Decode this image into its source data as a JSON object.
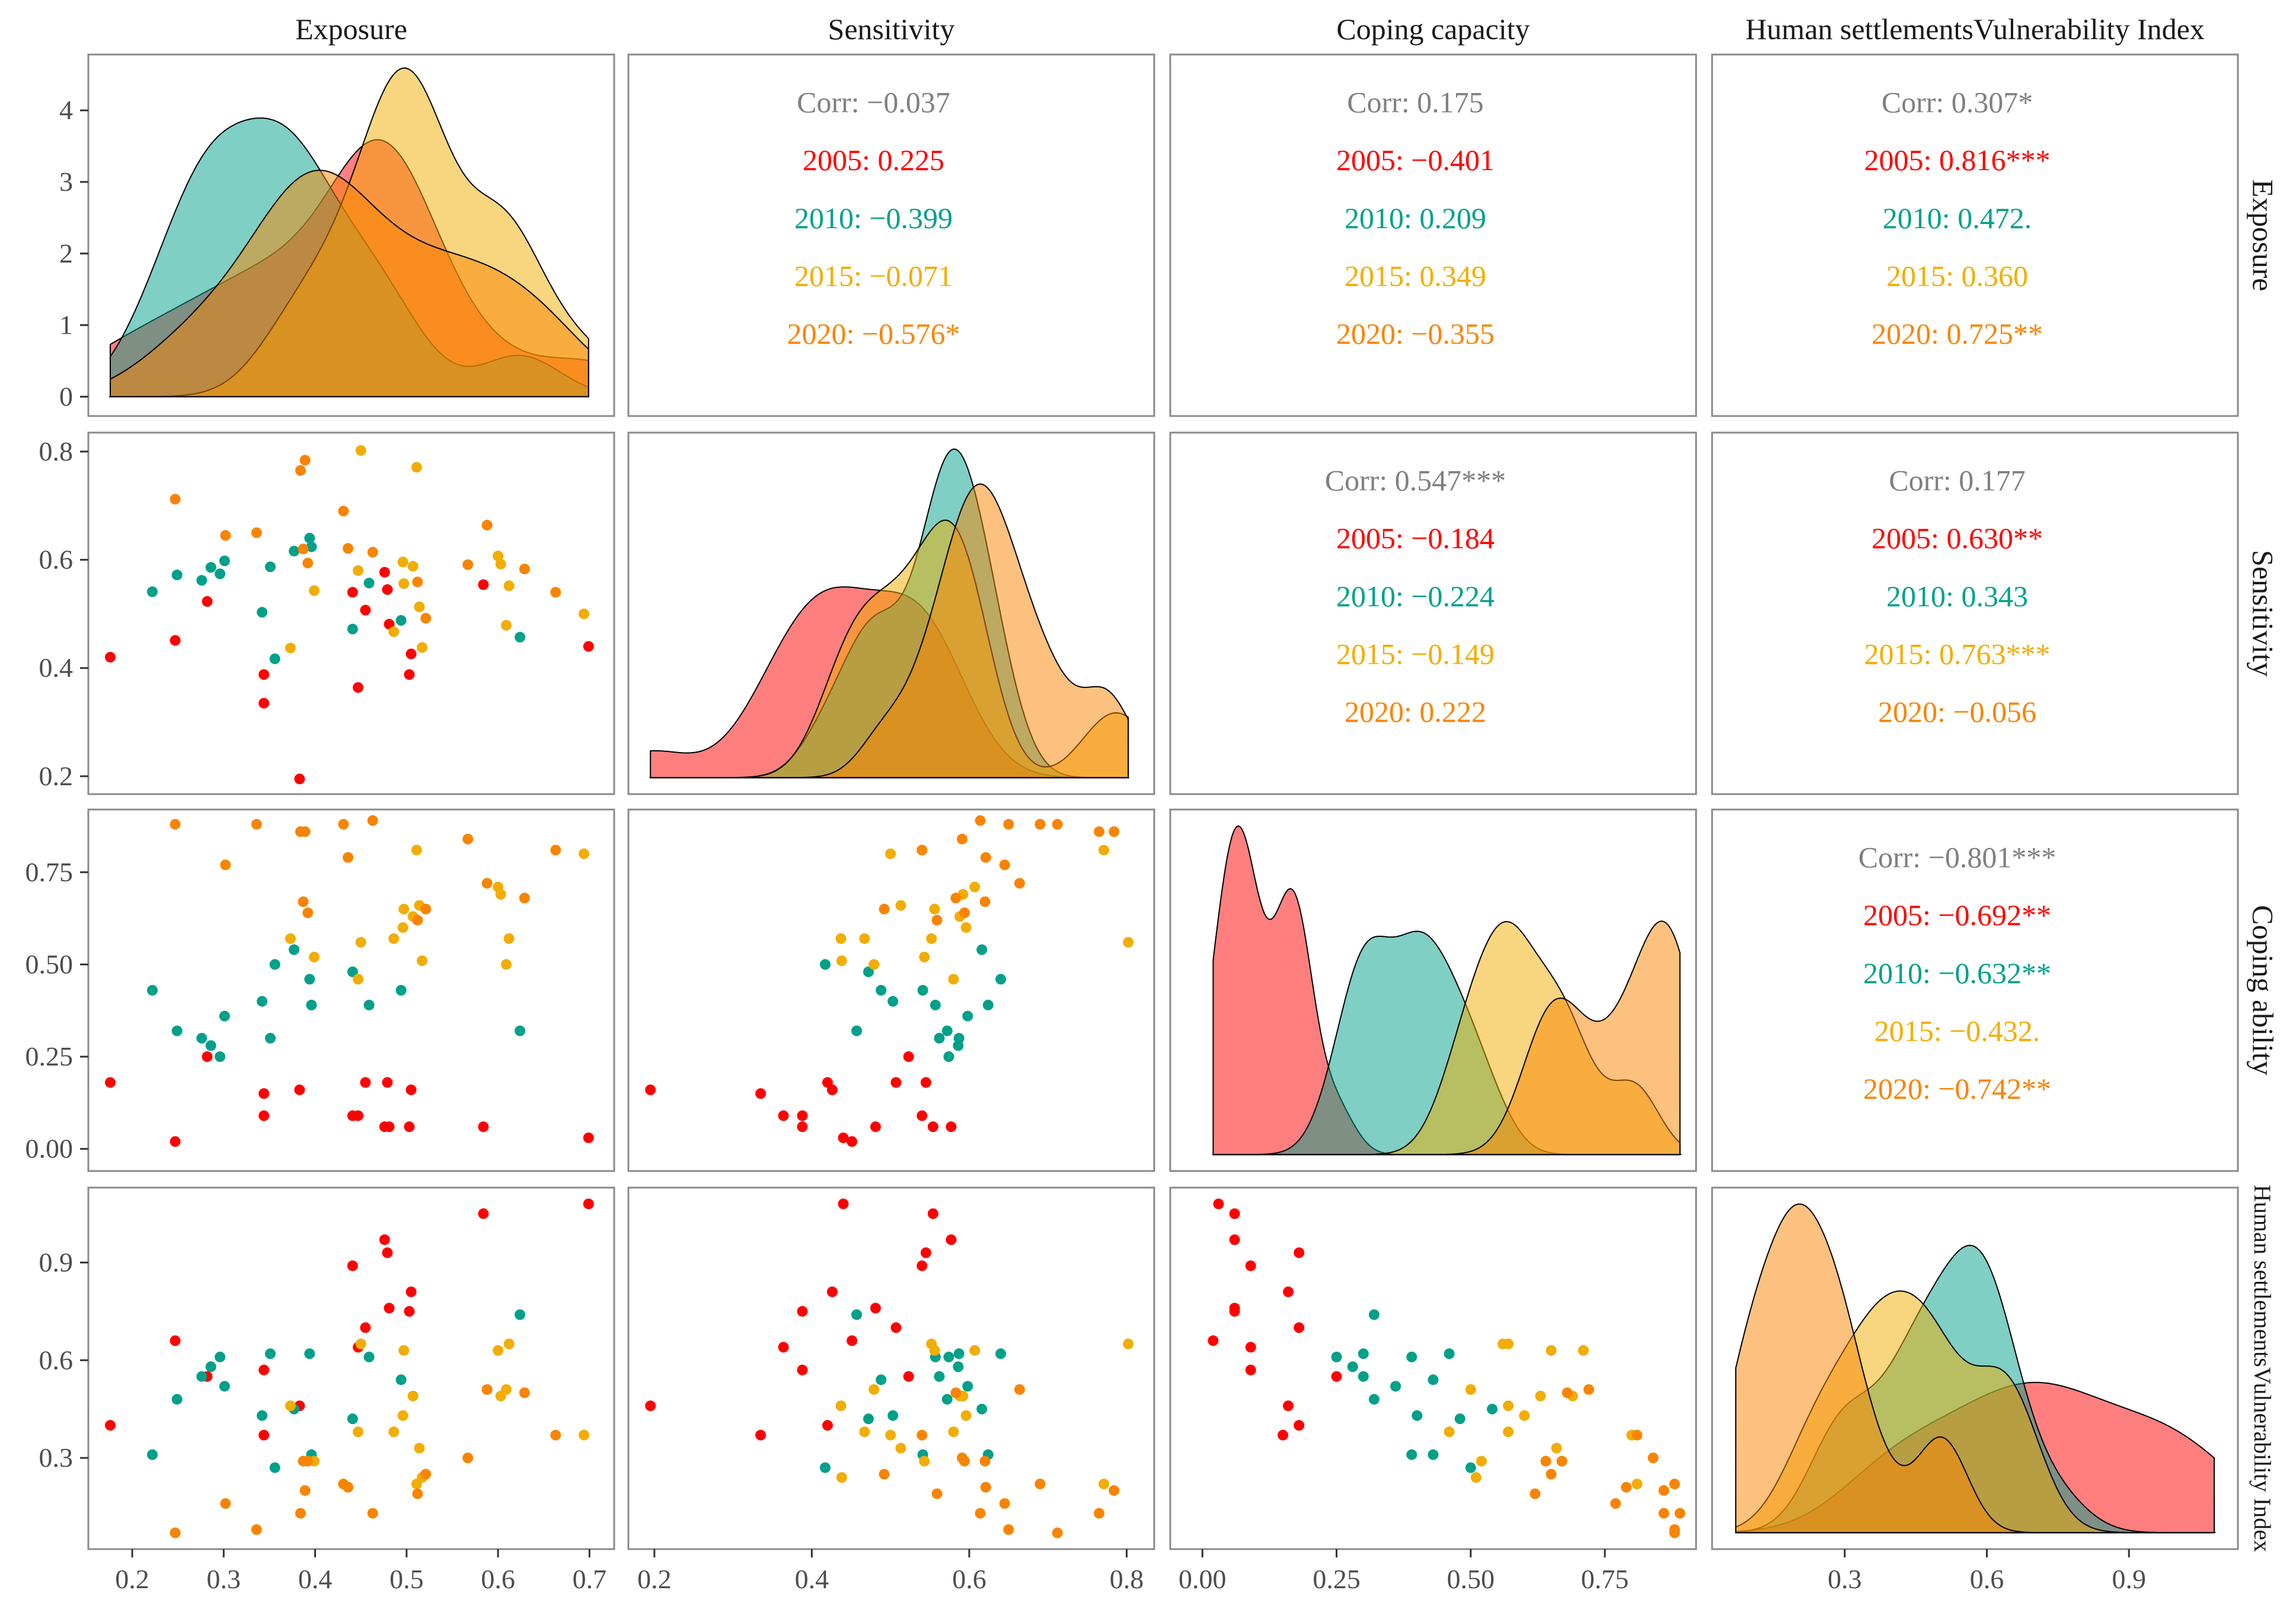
{
  "chart_data": {
    "type": "scatter-matrix",
    "title": "",
    "groups": [
      {
        "name": "2005",
        "color": "#FF0000"
      },
      {
        "name": "2010",
        "color": "#00A08A"
      },
      {
        "name": "2015",
        "color": "#F2AD00"
      },
      {
        "name": "2020",
        "color": "#F98400"
      }
    ],
    "variables": [
      {
        "key": "E",
        "column_label": "Exposure",
        "row_label": "Exposure",
        "range": [
          0.152,
          0.727
        ],
        "ticks": [
          0.2,
          0.3,
          0.4,
          0.5,
          0.6,
          0.7
        ],
        "tick_labels": [
          "0.2",
          "0.3",
          "0.4",
          "0.5",
          "0.6",
          "0.7"
        ]
      },
      {
        "key": "S",
        "column_label": "Sensitivity",
        "row_label": "Sensitivity",
        "range": [
          0.167,
          0.835
        ],
        "ticks": [
          0.2,
          0.4,
          0.6,
          0.8
        ],
        "tick_labels": [
          "0.2",
          "0.4",
          "0.6",
          "0.8"
        ]
      },
      {
        "key": "C",
        "column_label": "Coping capacity",
        "row_label": "Coping ability",
        "range": [
          -0.06,
          0.92
        ],
        "ticks": [
          0,
          0.25,
          0.5,
          0.75
        ],
        "tick_labels": [
          "0.00",
          "0.25",
          "0.50",
          "0.75"
        ]
      },
      {
        "key": "H",
        "column_label": "Human settlementsVulnerability Index",
        "row_label": "Human settlementsVulnerability Index",
        "range": [
          0.02,
          1.13
        ],
        "ticks": [
          0.3,
          0.6,
          0.9
        ],
        "tick_labels": [
          "0.3",
          "0.6",
          "0.9"
        ]
      }
    ],
    "density_axis": {
      "range": [
        -0.27,
        4.78
      ],
      "ticks": [
        0,
        1,
        2,
        3,
        4
      ],
      "tick_labels": [
        "0",
        "1",
        "2",
        "3",
        "4"
      ]
    },
    "observations": {
      "2005": {
        "E": [
          0.176,
          0.247,
          0.282,
          0.344,
          0.344,
          0.383,
          0.441,
          0.455,
          0.447,
          0.476,
          0.479,
          0.481,
          0.505,
          0.503,
          0.584,
          0.699
        ],
        "S": [
          0.42,
          0.451,
          0.523,
          0.388,
          0.335,
          0.195,
          0.54,
          0.507,
          0.364,
          0.577,
          0.545,
          0.481,
          0.426,
          0.388,
          0.554,
          0.44
        ],
        "C": [
          0.18,
          0.02,
          0.25,
          0.09,
          0.15,
          0.16,
          0.09,
          0.18,
          0.09,
          0.06,
          0.18,
          0.06,
          0.16,
          0.06,
          0.06,
          0.03
        ],
        "H": [
          0.4,
          0.66,
          0.55,
          0.57,
          0.37,
          0.46,
          0.89,
          0.7,
          0.64,
          0.97,
          0.93,
          0.76,
          0.81,
          0.75,
          1.05,
          1.08
        ]
      },
      "2010": {
        "E": [
          0.222,
          0.249,
          0.276,
          0.286,
          0.296,
          0.301,
          0.342,
          0.351,
          0.356,
          0.377,
          0.394,
          0.396,
          0.441,
          0.459,
          0.494,
          0.624
        ],
        "S": [
          0.541,
          0.572,
          0.562,
          0.586,
          0.574,
          0.598,
          0.503,
          0.587,
          0.417,
          0.616,
          0.64,
          0.624,
          0.472,
          0.557,
          0.488,
          0.457
        ],
        "C": [
          0.43,
          0.32,
          0.3,
          0.28,
          0.25,
          0.36,
          0.4,
          0.3,
          0.5,
          0.54,
          0.46,
          0.39,
          0.48,
          0.39,
          0.43,
          0.32
        ],
        "H": [
          0.31,
          0.48,
          0.55,
          0.58,
          0.61,
          0.52,
          0.43,
          0.62,
          0.27,
          0.45,
          0.62,
          0.31,
          0.42,
          0.61,
          0.54,
          0.74
        ]
      },
      "2015": {
        "E": [
          0.373,
          0.399,
          0.45,
          0.447,
          0.511,
          0.496,
          0.507,
          0.497,
          0.514,
          0.486,
          0.517,
          0.6,
          0.603,
          0.612,
          0.609,
          0.694
        ],
        "S": [
          0.437,
          0.543,
          0.802,
          0.58,
          0.771,
          0.596,
          0.588,
          0.556,
          0.513,
          0.467,
          0.438,
          0.607,
          0.592,
          0.552,
          0.479,
          0.5
        ],
        "C": [
          0.57,
          0.52,
          0.56,
          0.46,
          0.81,
          0.6,
          0.63,
          0.65,
          0.66,
          0.57,
          0.51,
          0.71,
          0.69,
          0.57,
          0.5,
          0.8
        ],
        "H": [
          0.46,
          0.29,
          0.65,
          0.38,
          0.22,
          0.43,
          0.49,
          0.63,
          0.33,
          0.38,
          0.24,
          0.63,
          0.49,
          0.65,
          0.51,
          0.37
        ]
      },
      "2020": {
        "E": [
          0.247,
          0.302,
          0.336,
          0.384,
          0.389,
          0.387,
          0.392,
          0.431,
          0.436,
          0.463,
          0.512,
          0.521,
          0.567,
          0.588,
          0.629,
          0.663
        ],
        "S": [
          0.712,
          0.645,
          0.65,
          0.765,
          0.784,
          0.62,
          0.594,
          0.69,
          0.621,
          0.614,
          0.559,
          0.492,
          0.591,
          0.664,
          0.583,
          0.54
        ],
        "C": [
          0.88,
          0.77,
          0.88,
          0.86,
          0.86,
          0.67,
          0.64,
          0.88,
          0.79,
          0.89,
          0.62,
          0.65,
          0.84,
          0.72,
          0.68,
          0.81
        ],
        "H": [
          0.07,
          0.16,
          0.08,
          0.13,
          0.2,
          0.29,
          0.29,
          0.22,
          0.21,
          0.13,
          0.19,
          0.25,
          0.3,
          0.51,
          0.5,
          0.37
        ]
      }
    },
    "corr_color": "#808080",
    "correlations": [
      {
        "row": 0,
        "col": 1,
        "lines": [
          "Corr: −0.037",
          "2005: 0.225",
          "2010: −0.399",
          "2015: −0.071",
          "2020: −0.576*"
        ]
      },
      {
        "row": 0,
        "col": 2,
        "lines": [
          "Corr: 0.175",
          "2005: −0.401",
          "2010: 0.209",
          "2015: 0.349",
          "2020: −0.355"
        ]
      },
      {
        "row": 0,
        "col": 3,
        "lines": [
          "Corr: 0.307*",
          "2005: 0.816***",
          "2010: 0.472.",
          "2015: 0.360",
          "2020: 0.725**"
        ]
      },
      {
        "row": 1,
        "col": 2,
        "lines": [
          "Corr: 0.547***",
          "2005: −0.184",
          "2010: −0.224",
          "2015: −0.149",
          "2020: 0.222"
        ]
      },
      {
        "row": 1,
        "col": 3,
        "lines": [
          "Corr: 0.177",
          "2005: 0.630**",
          "2010: 0.343",
          "2015: 0.763***",
          "2020: −0.056"
        ]
      },
      {
        "row": 2,
        "col": 3,
        "lines": [
          "Corr: −0.801***",
          "2005: −0.692**",
          "2010: −0.632**",
          "2015: −0.432.",
          "2020: −0.742**"
        ]
      }
    ]
  }
}
